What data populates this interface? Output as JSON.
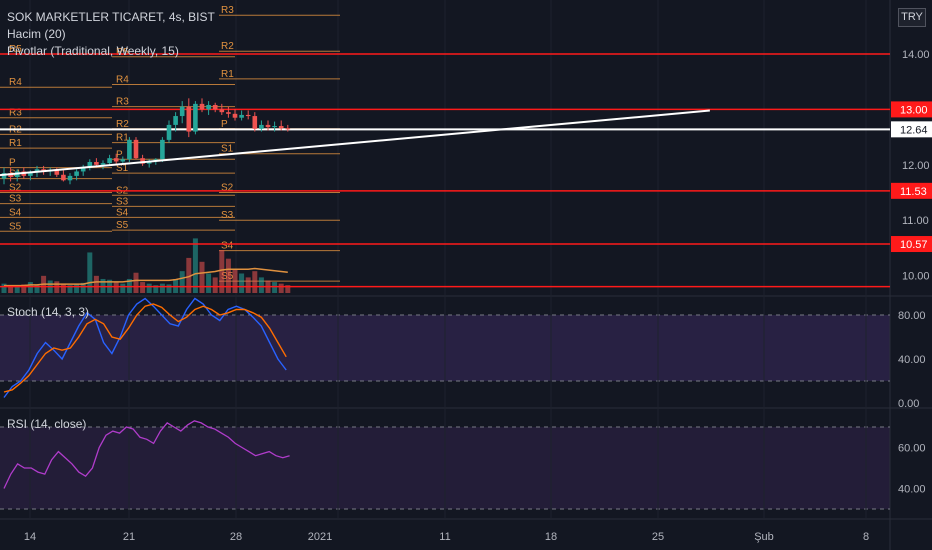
{
  "header": {
    "title": "SOK MARKETLER TICARET, 4s, BIST",
    "volume_indicator": "Hacim (20)",
    "pivot_indicator": "Pivotlar (Traditional, Weekly, 15)",
    "currency": "TRY"
  },
  "stoch_panel": {
    "title": "Stoch (14, 3, 3)",
    "ticks": [
      "80.00",
      "40.00",
      "0.00"
    ]
  },
  "rsi_panel": {
    "title": "RSI (14, close)",
    "ticks": [
      "60.00",
      "40.00"
    ]
  },
  "colors": {
    "background": "#131722",
    "up": "#26a69a",
    "down": "#ef5350",
    "pivot": "#e0913f",
    "level_line": "#ff1a1a",
    "trend": "#ffffff",
    "stoch_k": "#2962ff",
    "stoch_d": "#ff6d00",
    "rsi": "#b03ccb",
    "band": "#3b2a5e"
  },
  "chart_data": {
    "type": "candlestick",
    "symbol": "SOK MARKETLER TICARET",
    "interval": "4s",
    "exchange": "BIST",
    "y_axis_ticks": [
      14.0,
      13.0,
      12.0,
      11.0,
      10.0
    ],
    "x_axis_ticks": [
      "14",
      "21",
      "28",
      "2021",
      "11",
      "18",
      "25",
      "Şub",
      "8"
    ],
    "price_labels": [
      {
        "value": "14.00",
        "price": 14.0
      },
      {
        "value": "13.00",
        "price": 13.0
      },
      {
        "value": "12.64",
        "price": 12.64
      },
      {
        "value": "11.53",
        "price": 11.53
      },
      {
        "value": "10.57",
        "price": 10.57
      }
    ],
    "horizontal_levels": [
      14.0,
      13.0,
      11.53,
      10.57,
      9.8
    ],
    "trendline": {
      "from": {
        "date": "2020-12-09",
        "price": 11.72
      },
      "to": {
        "date": "2021-01-28",
        "price": 12.98
      }
    },
    "white_level": 12.64,
    "candles": [
      {
        "o": 11.75,
        "h": 11.95,
        "l": 11.65,
        "c": 11.85
      },
      {
        "o": 11.85,
        "h": 11.95,
        "l": 11.7,
        "c": 11.78
      },
      {
        "o": 11.78,
        "h": 11.92,
        "l": 11.7,
        "c": 11.88
      },
      {
        "o": 11.88,
        "h": 11.95,
        "l": 11.75,
        "c": 11.8
      },
      {
        "o": 11.8,
        "h": 11.9,
        "l": 11.72,
        "c": 11.86
      },
      {
        "o": 11.86,
        "h": 11.98,
        "l": 11.78,
        "c": 11.92
      },
      {
        "o": 11.92,
        "h": 11.98,
        "l": 11.82,
        "c": 11.88
      },
      {
        "o": 11.88,
        "h": 11.95,
        "l": 11.8,
        "c": 11.9
      },
      {
        "o": 11.9,
        "h": 11.95,
        "l": 11.78,
        "c": 11.82
      },
      {
        "o": 11.82,
        "h": 11.9,
        "l": 11.7,
        "c": 11.72
      },
      {
        "o": 11.72,
        "h": 11.85,
        "l": 11.65,
        "c": 11.8
      },
      {
        "o": 11.8,
        "h": 11.92,
        "l": 11.72,
        "c": 11.88
      },
      {
        "o": 11.88,
        "h": 12.0,
        "l": 11.8,
        "c": 11.95
      },
      {
        "o": 11.95,
        "h": 12.1,
        "l": 11.9,
        "c": 12.05
      },
      {
        "o": 12.05,
        "h": 12.12,
        "l": 11.95,
        "c": 12.0
      },
      {
        "o": 12.0,
        "h": 12.08,
        "l": 11.92,
        "c": 12.03
      },
      {
        "o": 12.03,
        "h": 12.18,
        "l": 11.98,
        "c": 12.12
      },
      {
        "o": 12.12,
        "h": 12.2,
        "l": 12.02,
        "c": 12.06
      },
      {
        "o": 12.06,
        "h": 12.15,
        "l": 12.0,
        "c": 12.1
      },
      {
        "o": 12.1,
        "h": 12.5,
        "l": 12.05,
        "c": 12.45
      },
      {
        "o": 12.45,
        "h": 12.5,
        "l": 12.1,
        "c": 12.12
      },
      {
        "o": 12.12,
        "h": 12.18,
        "l": 11.98,
        "c": 12.02
      },
      {
        "o": 12.02,
        "h": 12.1,
        "l": 11.95,
        "c": 12.06
      },
      {
        "o": 12.06,
        "h": 12.12,
        "l": 12.0,
        "c": 12.1
      },
      {
        "o": 12.1,
        "h": 12.5,
        "l": 12.05,
        "c": 12.45
      },
      {
        "o": 12.45,
        "h": 12.8,
        "l": 12.4,
        "c": 12.72
      },
      {
        "o": 12.72,
        "h": 12.95,
        "l": 12.6,
        "c": 12.88
      },
      {
        "o": 12.88,
        "h": 13.15,
        "l": 12.75,
        "c": 13.05
      },
      {
        "o": 13.05,
        "h": 13.2,
        "l": 12.5,
        "c": 12.6
      },
      {
        "o": 12.6,
        "h": 13.15,
        "l": 12.55,
        "c": 13.1
      },
      {
        "o": 13.1,
        "h": 13.2,
        "l": 12.95,
        "c": 13.0
      },
      {
        "o": 13.0,
        "h": 13.15,
        "l": 12.9,
        "c": 13.08
      },
      {
        "o": 13.08,
        "h": 13.12,
        "l": 12.95,
        "c": 13.0
      },
      {
        "o": 13.0,
        "h": 13.1,
        "l": 12.9,
        "c": 12.95
      },
      {
        "o": 12.95,
        "h": 13.05,
        "l": 12.85,
        "c": 12.92
      },
      {
        "o": 12.92,
        "h": 13.0,
        "l": 12.8,
        "c": 12.85
      },
      {
        "o": 12.85,
        "h": 12.98,
        "l": 12.8,
        "c": 12.9
      },
      {
        "o": 12.9,
        "h": 12.98,
        "l": 12.82,
        "c": 12.88
      },
      {
        "o": 12.88,
        "h": 12.95,
        "l": 12.6,
        "c": 12.65
      },
      {
        "o": 12.65,
        "h": 12.8,
        "l": 12.6,
        "c": 12.72
      },
      {
        "o": 12.72,
        "h": 12.8,
        "l": 12.62,
        "c": 12.68
      },
      {
        "o": 12.68,
        "h": 12.78,
        "l": 12.6,
        "c": 12.7
      },
      {
        "o": 12.7,
        "h": 12.8,
        "l": 12.62,
        "c": 12.66
      },
      {
        "o": 12.66,
        "h": 12.72,
        "l": 12.6,
        "c": 12.64
      }
    ],
    "volume": [
      12,
      10,
      9,
      11,
      14,
      10,
      22,
      16,
      15,
      12,
      10,
      11,
      13,
      52,
      22,
      18,
      17,
      14,
      12,
      18,
      26,
      14,
      12,
      10,
      12,
      11,
      18,
      28,
      45,
      70,
      40,
      25,
      20,
      55,
      44,
      30,
      25,
      20,
      28,
      20,
      16,
      14,
      12,
      10
    ],
    "volume_ma": [
      10,
      10,
      10,
      10,
      11,
      11,
      12,
      12,
      12,
      12,
      12,
      12,
      12,
      14,
      15,
      15,
      15,
      15,
      15,
      16,
      17,
      17,
      17,
      17,
      17,
      17,
      18,
      20,
      22,
      26,
      27,
      28,
      29,
      31,
      32,
      32,
      32,
      32,
      33,
      32,
      31,
      30,
      29,
      28
    ],
    "pivots_week1": {
      "R5": 14.0,
      "R4": 13.4,
      "R3": 12.85,
      "R2": 12.55,
      "R1": 12.3,
      "P": 11.95,
      "S1": 11.75,
      "S2": 11.5,
      "S3": 11.3,
      "S4": 11.05,
      "S5": 10.8
    },
    "pivots_week2": {
      "R5": 13.95,
      "R4": 13.45,
      "R3": 13.05,
      "R2": 12.65,
      "R1": 12.4,
      "P": 12.1,
      "S1": 11.85,
      "S2": 11.45,
      "S3": 11.25,
      "S4": 11.05,
      "S5": 10.82
    },
    "pivots_week3": {
      "R3": 14.7,
      "R2": 14.05,
      "R1": 13.55,
      "P": 12.65,
      "S1": 12.2,
      "S2": 11.5,
      "S3": 11.0,
      "S4": 10.45,
      "S5": 9.9
    },
    "stoch_k": [
      5,
      15,
      20,
      30,
      45,
      55,
      48,
      40,
      55,
      70,
      82,
      76,
      55,
      45,
      60,
      80,
      90,
      95,
      88,
      80,
      72,
      70,
      85,
      95,
      90,
      80,
      75,
      85,
      88,
      85,
      78,
      70,
      55,
      40,
      30
    ],
    "stoch_d": [
      10,
      12,
      18,
      25,
      35,
      45,
      50,
      48,
      50,
      60,
      72,
      76,
      72,
      60,
      58,
      68,
      80,
      88,
      90,
      87,
      80,
      74,
      78,
      85,
      88,
      85,
      80,
      82,
      85,
      85,
      82,
      78,
      68,
      55,
      42
    ],
    "rsi": [
      40,
      47,
      52,
      50,
      50,
      48,
      47,
      54,
      58,
      55,
      52,
      48,
      46,
      50,
      60,
      66,
      68,
      67,
      70,
      69,
      65,
      64,
      62,
      68,
      72,
      70,
      68,
      71,
      73,
      72,
      70,
      69,
      67,
      65,
      62,
      60,
      58,
      56,
      57,
      58,
      56,
      55,
      56
    ]
  }
}
